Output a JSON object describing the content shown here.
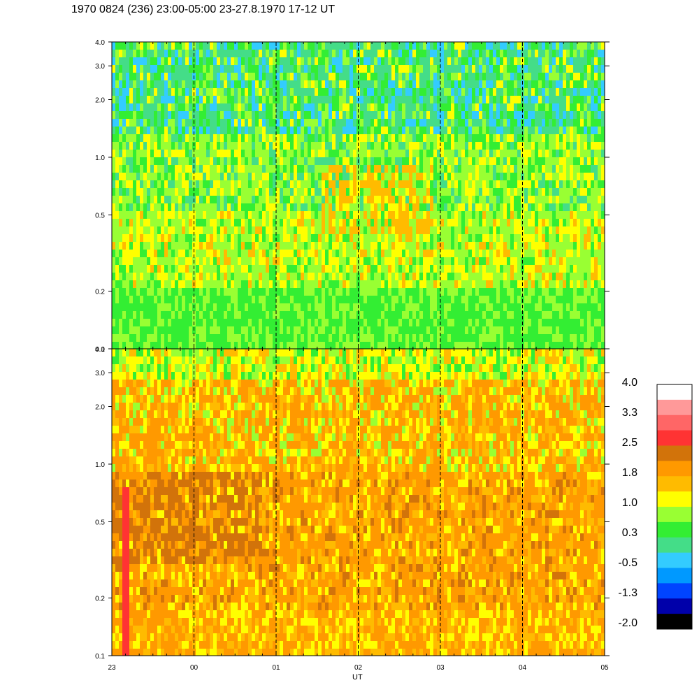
{
  "title": "1970 0824 (236) 23:00-05:00 23-27.8.1970  17-12 UT",
  "chart_data": [
    {
      "type": "heatmap",
      "panel": "upper",
      "x_tick_labels": [
        "23",
        "00",
        "01",
        "02",
        "03",
        "04",
        "05"
      ],
      "x_tick_hours": [
        23,
        24,
        25,
        26,
        27,
        28,
        29
      ],
      "xlim_hours": [
        23,
        29
      ],
      "y_scale": "log",
      "ylim": [
        0.1,
        4.0
      ],
      "y_ticks": [
        0.1,
        0.2,
        0.5,
        1.0,
        2.0,
        3.0,
        4.0
      ],
      "y_tick_labels": [
        "0.1",
        "0.2",
        "0.5",
        "1.0",
        "2.0",
        "3.0",
        "4.0"
      ],
      "hour_gridlines": "dashed",
      "dominant_levels": [
        0.3,
        1.0,
        -0.5
      ]
    },
    {
      "type": "heatmap",
      "panel": "lower",
      "x_tick_labels": [
        "23",
        "00",
        "01",
        "02",
        "03",
        "04",
        "05"
      ],
      "x_tick_hours": [
        23,
        24,
        25,
        26,
        27,
        28,
        29
      ],
      "xlim_hours": [
        23,
        29
      ],
      "xlabel": "UT",
      "y_scale": "log",
      "ylim": [
        0.1,
        4.0
      ],
      "y_ticks": [
        0.1,
        0.2,
        0.5,
        1.0,
        2.0,
        3.0,
        4.0
      ],
      "y_tick_labels": [
        "0.1",
        "0.2",
        "0.5",
        "1.0",
        "2.0",
        "3.0",
        "4.0"
      ],
      "hour_gridlines": "dashed",
      "dominant_levels": [
        1.8,
        1.0,
        2.5
      ]
    }
  ],
  "colorbar": {
    "labels": [
      "4.0",
      "3.3",
      "2.5",
      "1.8",
      "1.0",
      "0.3",
      "-0.5",
      "-1.3",
      "-2.0"
    ],
    "range": [
      -2.0,
      4.0
    ],
    "colors": [
      "#ffffff",
      "#ff9999",
      "#ff6666",
      "#ff3333",
      "#d2730a",
      "#ff9900",
      "#ffbb00",
      "#ffff00",
      "#99ff33",
      "#33ee33",
      "#44dd88",
      "#33ccff",
      "#0099ff",
      "#0044ff",
      "#0000aa",
      "#000000"
    ]
  }
}
